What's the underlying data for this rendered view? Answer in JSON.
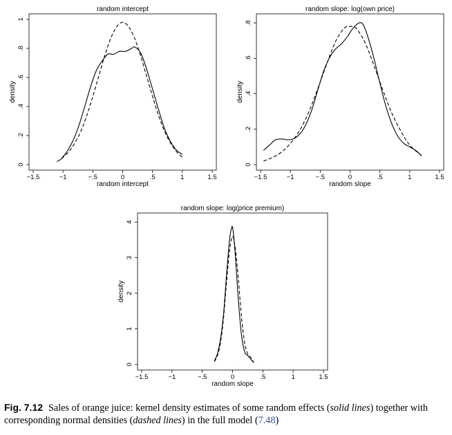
{
  "legend": {
    "kernel_label": "solid lines",
    "normal_label": "dashed lines"
  },
  "caption": {
    "fig_number": "Fig. 7.12",
    "text_before_solid": "Sales of orange juice: kernel density estimates of some random effects (",
    "solid": "solid lines",
    "text_between": ") together with corresponding normal densities (",
    "dashed": "dashed lines",
    "text_after_dashed": ") in the full model (",
    "ref": "7.48",
    "text_end": ")"
  },
  "chart_data": [
    {
      "type": "line",
      "title": "random intercept",
      "xlabel": "random intercept",
      "ylabel": "density",
      "xlim": [
        -1.5,
        1.5
      ],
      "ylim": [
        0,
        1
      ],
      "xticks": [
        -1.5,
        -1,
        -0.5,
        0,
        0.5,
        1,
        1.5
      ],
      "xtick_labels": [
        "−1.5",
        "−1",
        "−.5",
        "0",
        ".5",
        "1",
        "1.5"
      ],
      "yticks": [
        0,
        0.2,
        0.4,
        0.6,
        0.8,
        1
      ],
      "ytick_labels": [
        "0",
        ".2",
        ".4",
        ".6",
        ".8",
        "1"
      ],
      "series": [
        {
          "style": "solid",
          "x": [
            -1.05,
            -0.95,
            -0.85,
            -0.75,
            -0.65,
            -0.55,
            -0.45,
            -0.35,
            -0.25,
            -0.15,
            -0.05,
            0.05,
            0.15,
            0.2,
            0.3,
            0.4,
            0.5,
            0.6,
            0.7,
            0.8,
            0.9,
            1.0
          ],
          "y": [
            0.03,
            0.08,
            0.15,
            0.25,
            0.38,
            0.52,
            0.64,
            0.71,
            0.76,
            0.76,
            0.78,
            0.78,
            0.8,
            0.81,
            0.77,
            0.66,
            0.52,
            0.38,
            0.25,
            0.16,
            0.1,
            0.07
          ]
        },
        {
          "style": "dashed",
          "x": [
            -1.1,
            -1.0,
            -0.9,
            -0.8,
            -0.7,
            -0.6,
            -0.5,
            -0.4,
            -0.3,
            -0.2,
            -0.1,
            0.0,
            0.1,
            0.2,
            0.3,
            0.4,
            0.5,
            0.6,
            0.7,
            0.8,
            0.9,
            1.0
          ],
          "y": [
            0.02,
            0.05,
            0.09,
            0.15,
            0.23,
            0.34,
            0.47,
            0.61,
            0.75,
            0.87,
            0.95,
            0.98,
            0.95,
            0.87,
            0.75,
            0.61,
            0.47,
            0.34,
            0.23,
            0.15,
            0.09,
            0.05
          ]
        }
      ]
    },
    {
      "type": "line",
      "title": "random slope: log(own price)",
      "xlabel": "random slope",
      "ylabel": "density",
      "xlim": [
        -1.5,
        1.5
      ],
      "ylim": [
        0,
        0.82
      ],
      "xticks": [
        -1.5,
        -1,
        -0.5,
        0,
        0.5,
        1,
        1.5
      ],
      "xtick_labels": [
        "−1.5",
        "−1",
        "−.5",
        "0",
        ".5",
        "1",
        "1.5"
      ],
      "yticks": [
        0,
        0.2,
        0.4,
        0.6,
        0.8
      ],
      "ytick_labels": [
        "0",
        ".2",
        ".4",
        ".6",
        ".8"
      ],
      "series": [
        {
          "style": "solid",
          "x": [
            -1.45,
            -1.35,
            -1.25,
            -1.15,
            -1.05,
            -0.95,
            -0.85,
            -0.75,
            -0.65,
            -0.55,
            -0.45,
            -0.35,
            -0.25,
            -0.15,
            -0.05,
            0.05,
            0.15,
            0.22,
            0.3,
            0.4,
            0.5,
            0.6,
            0.7,
            0.8,
            0.9,
            1.0,
            1.1,
            1.2
          ],
          "y": [
            0.08,
            0.11,
            0.14,
            0.145,
            0.14,
            0.145,
            0.17,
            0.22,
            0.3,
            0.41,
            0.52,
            0.6,
            0.65,
            0.68,
            0.72,
            0.77,
            0.8,
            0.79,
            0.72,
            0.6,
            0.46,
            0.33,
            0.23,
            0.16,
            0.12,
            0.1,
            0.08,
            0.05
          ]
        },
        {
          "style": "dashed",
          "x": [
            -1.45,
            -1.3,
            -1.15,
            -1.0,
            -0.85,
            -0.7,
            -0.55,
            -0.4,
            -0.25,
            -0.1,
            0.0,
            0.1,
            0.25,
            0.4,
            0.55,
            0.7,
            0.85,
            1.0,
            1.2
          ],
          "y": [
            0.02,
            0.04,
            0.07,
            0.12,
            0.19,
            0.29,
            0.42,
            0.56,
            0.69,
            0.77,
            0.78,
            0.77,
            0.69,
            0.56,
            0.42,
            0.29,
            0.19,
            0.11,
            0.05
          ]
        }
      ]
    },
    {
      "type": "line",
      "title": "random slope: log(price premium)",
      "xlabel": "random slope",
      "ylabel": "density",
      "xlim": [
        -1.5,
        1.5
      ],
      "ylim": [
        0,
        4.1
      ],
      "xticks": [
        -1.5,
        -1,
        -0.5,
        0,
        0.5,
        1,
        1.5
      ],
      "xtick_labels": [
        "−1.5",
        "−1",
        "−.5",
        "0",
        ".5",
        "1",
        "1.5"
      ],
      "yticks": [
        0,
        1,
        2,
        3,
        4
      ],
      "ytick_labels": [
        "0",
        "1",
        "2",
        "3",
        "4"
      ],
      "series": [
        {
          "style": "solid",
          "x": [
            -0.3,
            -0.25,
            -0.2,
            -0.15,
            -0.1,
            -0.05,
            -0.02,
            0.0,
            0.03,
            0.06,
            0.1,
            0.15,
            0.2,
            0.25,
            0.3,
            0.35
          ],
          "y": [
            0.1,
            0.3,
            0.7,
            1.4,
            2.5,
            3.5,
            3.8,
            3.85,
            3.4,
            2.7,
            1.7,
            0.8,
            0.35,
            0.25,
            0.15,
            0.05
          ]
        },
        {
          "style": "dashed",
          "x": [
            -0.3,
            -0.25,
            -0.2,
            -0.15,
            -0.1,
            -0.05,
            0.0,
            0.05,
            0.1,
            0.15,
            0.2,
            0.25,
            0.3,
            0.35
          ],
          "y": [
            0.08,
            0.25,
            0.6,
            1.3,
            2.3,
            3.2,
            3.6,
            3.2,
            2.3,
            1.3,
            0.6,
            0.3,
            0.2,
            0.05
          ]
        }
      ]
    }
  ]
}
